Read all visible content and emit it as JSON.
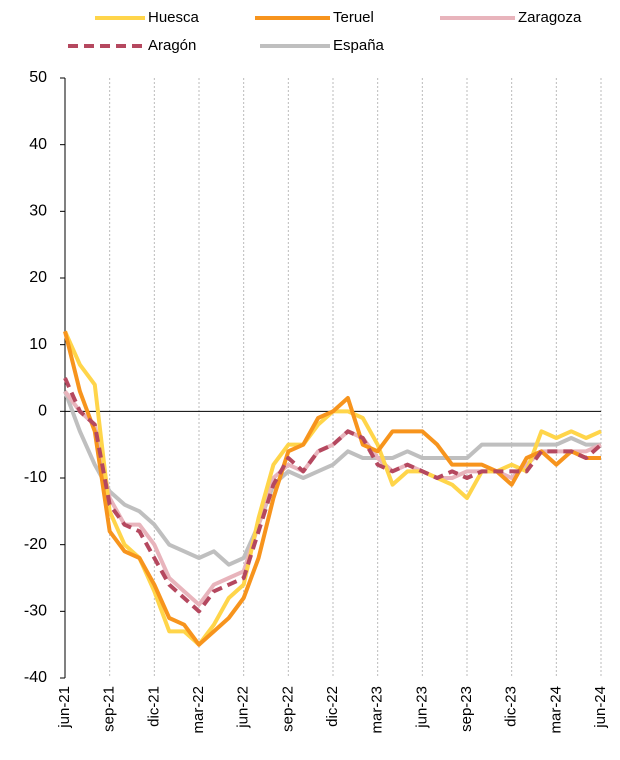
{
  "chart_data": {
    "type": "line",
    "categories": [
      "jun-21",
      null,
      null,
      "sep-21",
      null,
      null,
      "dic-21",
      null,
      null,
      "mar-22",
      null,
      null,
      "jun-22",
      null,
      null,
      "sep-22",
      null,
      null,
      "dic-22",
      null,
      null,
      "mar-23",
      null,
      null,
      "jun-23",
      null,
      null,
      "sep-23",
      null,
      null,
      "dic-23",
      null,
      null,
      "mar-24",
      null,
      null,
      "jun-24"
    ],
    "series": [
      {
        "name": "Huesca",
        "color": "#ffd54a",
        "line_style": "solid",
        "values": [
          12,
          7,
          4,
          -15,
          -20,
          -22,
          -27,
          -33,
          -33,
          -35,
          -32,
          -28,
          -26,
          -16,
          -8,
          -5,
          -5,
          -2,
          0,
          0,
          -1,
          -5,
          -11,
          -9,
          -9,
          -10,
          -11,
          -13,
          -9,
          -9,
          -8,
          -9,
          -3,
          -4,
          -3,
          -4,
          -3
        ]
      },
      {
        "name": "Teruel",
        "color": "#f7941d",
        "line_style": "solid",
        "values": [
          12,
          3,
          -3,
          -18,
          -21,
          -22,
          -26,
          -31,
          -32,
          -35,
          -33,
          -31,
          -28,
          -22,
          -13,
          -6,
          -5,
          -1,
          0,
          2,
          -5,
          -6,
          -3,
          -3,
          -3,
          -5,
          -8,
          -8,
          -8,
          -9,
          -11,
          -7,
          -6,
          -8,
          -6,
          -7,
          -7
        ]
      },
      {
        "name": "Zaragoza",
        "color": "#e8b4bc",
        "line_style": "solid",
        "values": [
          3,
          0,
          -2,
          -13,
          -17,
          -17,
          -20,
          -25,
          -27,
          -29,
          -26,
          -25,
          -24,
          -17,
          -10,
          -8,
          -9,
          -6,
          -5,
          -3,
          -4,
          -7,
          -9,
          -8,
          -9,
          -10,
          -10,
          -9,
          -9,
          -9,
          -10,
          -8,
          -6,
          -6,
          -6,
          -6,
          -5
        ]
      },
      {
        "name": "Aragón",
        "color": "#b5485f",
        "line_style": "dashed",
        "values": [
          5,
          0,
          -2,
          -14,
          -17,
          -18,
          -22,
          -26,
          -28,
          -30,
          -27,
          -26,
          -25,
          -18,
          -11,
          -7,
          -9,
          -6,
          -5,
          -3,
          -4,
          -8,
          -9,
          -8,
          -9,
          -10,
          -9,
          -10,
          -9,
          -9,
          -9,
          -9,
          -6,
          -6,
          -6,
          -7,
          -5
        ]
      },
      {
        "name": "España",
        "color": "#bfbfbf",
        "line_style": "solid",
        "values": [
          3,
          -3,
          -8,
          -12,
          -14,
          -15,
          -17,
          -20,
          -21,
          -22,
          -21,
          -23,
          -22,
          -17,
          -11,
          -9,
          -10,
          -9,
          -8,
          -6,
          -7,
          -7,
          -7,
          -6,
          -7,
          -7,
          -7,
          -7,
          -5,
          -5,
          -5,
          -5,
          -5,
          -5,
          -4,
          -5,
          -5
        ]
      }
    ],
    "ylim": [
      -40,
      50
    ],
    "yticks": [
      -40,
      -30,
      -20,
      -10,
      0,
      10,
      20,
      30,
      40,
      50
    ],
    "grid": "x",
    "legend": "top"
  }
}
